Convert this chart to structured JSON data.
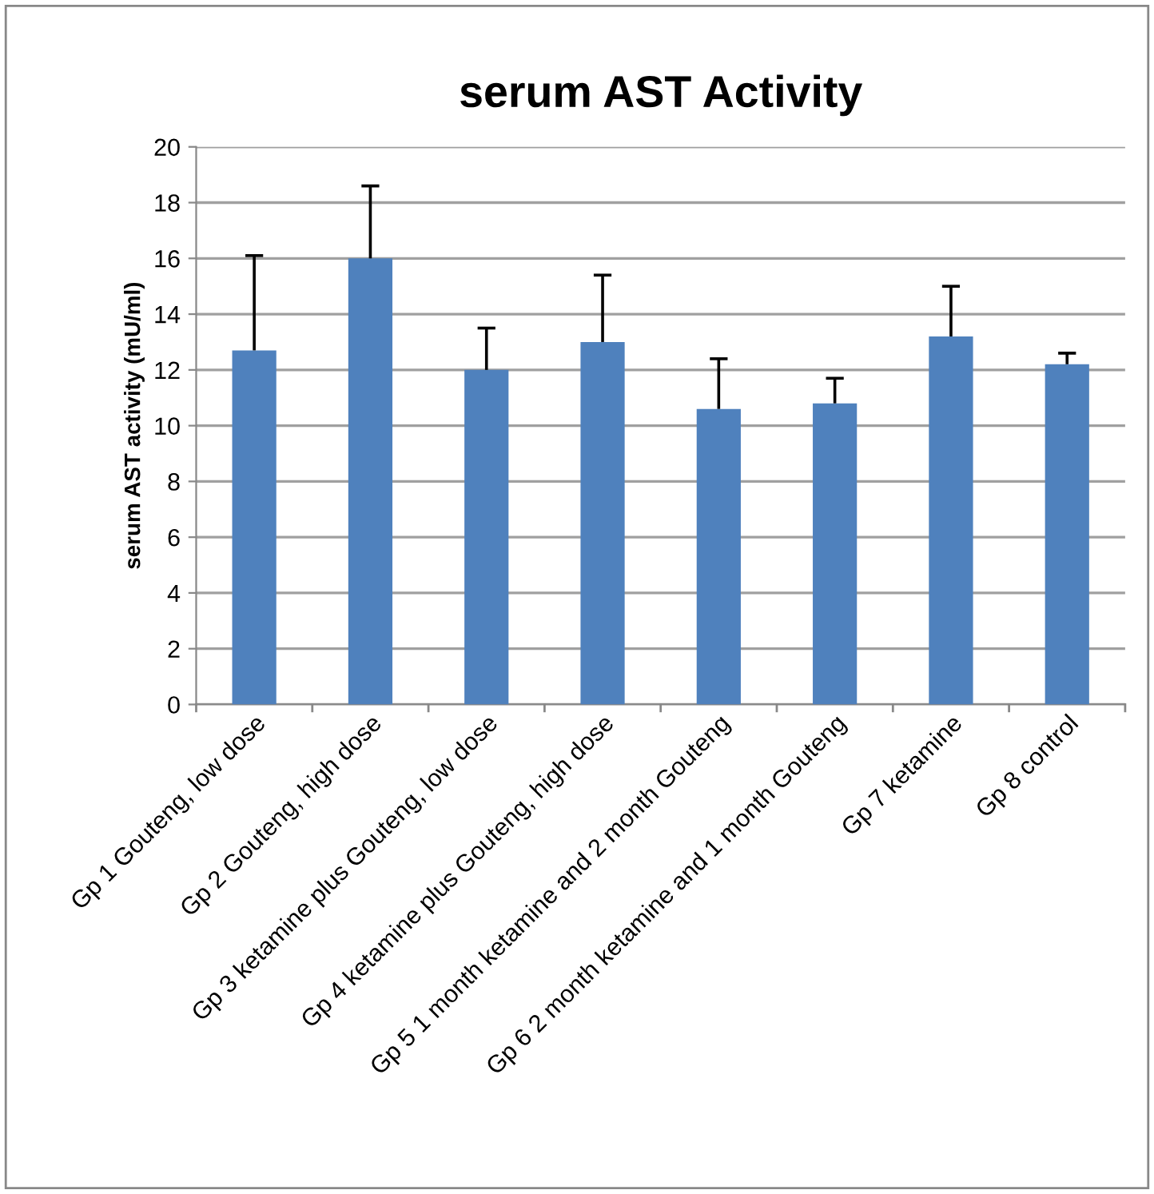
{
  "chart_data": {
    "type": "bar",
    "title": "serum AST Activity",
    "ylabel": "serum AST activity (mU/ml)",
    "categories": [
      "Gp 1 Gouteng, low dose",
      "Gp 2 Gouteng, high dose",
      "Gp 3 ketamine plus Gouteng, low dose",
      "Gp 4 ketamine plus Gouteng, high dose",
      "Gp 5 1 month ketamine and 2 month Gouteng",
      "Gp 6 2 month ketamine and 1 month Gouteng",
      "Gp 7 ketamine",
      "Gp 8 control"
    ],
    "values": [
      12.7,
      16.0,
      12.0,
      13.0,
      10.6,
      10.8,
      13.2,
      12.2
    ],
    "errors": [
      [
        12.7,
        16.1
      ],
      [
        16.0,
        18.6
      ],
      [
        12.0,
        13.5
      ],
      [
        13.0,
        15.4
      ],
      [
        10.6,
        12.4
      ],
      [
        10.8,
        11.7
      ],
      [
        13.2,
        15.0
      ],
      [
        12.2,
        12.6
      ]
    ],
    "color": "#4f81bd",
    "ylim": [
      0,
      20
    ],
    "yticks": [
      0,
      2,
      4,
      6,
      8,
      10,
      12,
      14,
      16,
      18,
      20
    ],
    "grid": "y",
    "legend": false
  }
}
